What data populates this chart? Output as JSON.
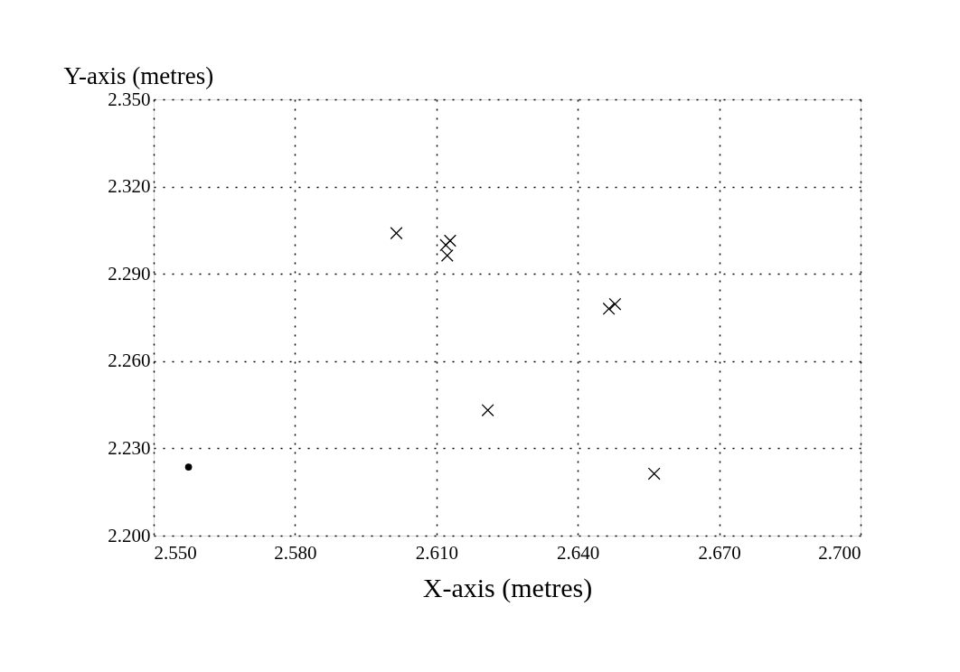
{
  "chart_data": {
    "type": "scatter",
    "xlabel": "X-axis (metres)",
    "ylabel": "Y-axis (metres)",
    "series": [
      {
        "color": "#000000",
        "marker": "cross",
        "x": [
          2.6015,
          2.612,
          2.6129,
          2.6123,
          2.6466,
          2.6479,
          2.6209,
          2.6562
        ],
        "values": [
          2.304,
          2.2999,
          2.3014,
          2.2963,
          2.278,
          2.2796,
          2.2431,
          2.2213
        ]
      },
      {
        "color": "#000000",
        "marker": "circle",
        "x": [
          2.5574
        ],
        "values": [
          2.2236
        ]
      }
    ],
    "xlim": [
      2.55,
      2.7
    ],
    "xticks": [
      {
        "value": 2.55,
        "label": "2.550"
      },
      {
        "value": 2.58,
        "label": "2.580"
      },
      {
        "value": 2.61,
        "label": "2.610"
      },
      {
        "value": 2.64,
        "label": "2.640"
      },
      {
        "value": 2.67,
        "label": "2.670"
      },
      {
        "value": 2.7,
        "label": "2.700"
      }
    ],
    "ylim": [
      2.2,
      2.35
    ],
    "yticks": [
      {
        "value": 2.2,
        "label": "2.200"
      },
      {
        "value": 2.23,
        "label": "2.230"
      },
      {
        "value": 2.26,
        "label": "2.260"
      },
      {
        "value": 2.29,
        "label": "2.290"
      },
      {
        "value": 2.32,
        "label": "2.320"
      },
      {
        "value": 2.35,
        "label": "2.350"
      }
    ],
    "grid": true
  }
}
